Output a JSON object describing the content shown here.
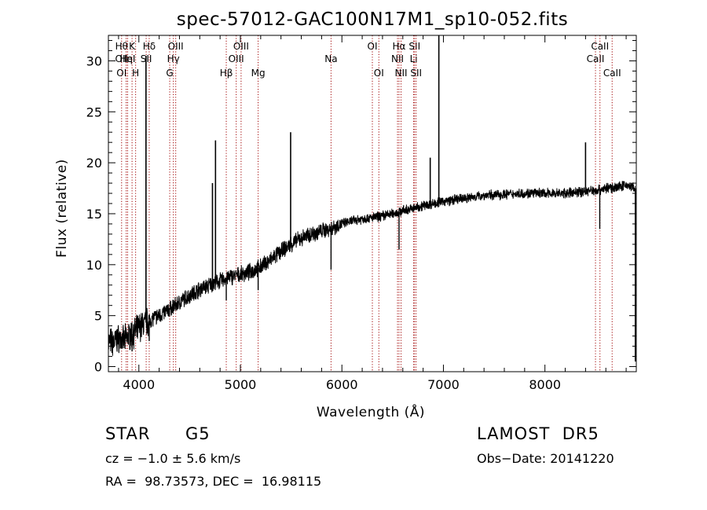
{
  "chart_data": {
    "type": "line",
    "title": "spec-57012-GAC100N17M1_sp10-052.fits",
    "xlabel": "Wavelength (Å)",
    "ylabel": "Flux (relative)",
    "xlim": [
      3700,
      8900
    ],
    "ylim": [
      -0.5,
      32.5
    ],
    "xticks": [
      4000,
      5000,
      6000,
      7000,
      8000
    ],
    "yticks": [
      0,
      5,
      10,
      15,
      20,
      25,
      30
    ],
    "grid": false,
    "line_color": "#000000",
    "marker_color": "#a00000",
    "series": [
      {
        "x": [
          3700,
          3750,
          3800,
          3850,
          3900,
          3950,
          4000,
          4050,
          4100,
          4150,
          4200,
          4300,
          4400,
          4500,
          4600,
          4700,
          4800,
          4900,
          5000,
          5100,
          5200,
          5300,
          5400,
          5500,
          5600,
          5700,
          5800,
          5900,
          6000,
          6100,
          6200,
          6300,
          6400,
          6500,
          6600,
          6700,
          6800,
          6900,
          7000,
          7200,
          7400,
          7600,
          7800,
          8000,
          8200,
          8400,
          8500,
          8600,
          8700,
          8800,
          8890
        ],
        "y": [
          2.5,
          2.3,
          2.8,
          2.5,
          3.0,
          3.3,
          3.8,
          4.2,
          4.5,
          4.8,
          5.0,
          5.6,
          6.3,
          7.0,
          7.6,
          8.0,
          8.4,
          8.8,
          9.0,
          9.3,
          9.8,
          10.5,
          11.3,
          12.0,
          12.6,
          13.0,
          13.3,
          13.6,
          14.0,
          14.3,
          14.5,
          14.6,
          14.8,
          15.0,
          15.3,
          15.5,
          15.8,
          16.0,
          16.2,
          16.5,
          16.8,
          16.9,
          17.0,
          17.0,
          17.0,
          17.2,
          17.3,
          17.5,
          17.6,
          17.8,
          17.5
        ],
        "emission_lines": [
          [
            4070,
            30.5
          ],
          [
            4755,
            22.2
          ],
          [
            4725,
            18.0
          ],
          [
            5495,
            23.0
          ],
          [
            6870,
            20.5
          ],
          [
            6955,
            32.5
          ],
          [
            8400,
            22.0
          ]
        ],
        "absorption_lines": [
          [
            3933,
            1.5
          ],
          [
            4102,
            2.5
          ],
          [
            4861,
            6.5
          ],
          [
            5175,
            7.5
          ],
          [
            5893,
            9.5
          ],
          [
            6563,
            11.5
          ],
          [
            8540,
            13.5
          ],
          [
            8890,
            0.5
          ]
        ]
      }
    ],
    "line_markers": [
      {
        "x": 3830,
        "labels": [
          "Hθ",
          "OII",
          "OI"
        ]
      },
      {
        "x": 3875,
        "labels": [
          "",
          "Hη",
          ""
        ]
      },
      {
        "x": 3889,
        "labels": [
          "",
          "HeI",
          ""
        ]
      },
      {
        "x": 3933,
        "labels": [
          "K",
          "",
          ""
        ]
      },
      {
        "x": 3968,
        "labels": [
          "",
          "",
          "H"
        ]
      },
      {
        "x": 4072,
        "labels": [
          "",
          "SII",
          ""
        ]
      },
      {
        "x": 4102,
        "labels": [
          "Hδ",
          "",
          ""
        ]
      },
      {
        "x": 4304,
        "labels": [
          "",
          "",
          "G"
        ]
      },
      {
        "x": 4340,
        "labels": [
          "",
          "Hγ",
          ""
        ]
      },
      {
        "x": 4363,
        "labels": [
          "OIII",
          "",
          ""
        ]
      },
      {
        "x": 4861,
        "labels": [
          "",
          "",
          "Hβ"
        ]
      },
      {
        "x": 4959,
        "labels": [
          "",
          "OIII",
          ""
        ]
      },
      {
        "x": 5007,
        "labels": [
          "OIII",
          "",
          ""
        ]
      },
      {
        "x": 5175,
        "labels": [
          "",
          "",
          "Mg"
        ]
      },
      {
        "x": 5893,
        "labels": [
          "",
          "Na",
          ""
        ]
      },
      {
        "x": 6300,
        "labels": [
          "OI",
          "",
          ""
        ]
      },
      {
        "x": 6364,
        "labels": [
          "",
          "",
          "OI"
        ]
      },
      {
        "x": 6548,
        "labels": [
          "",
          "NII",
          ""
        ]
      },
      {
        "x": 6563,
        "labels": [
          "Hα",
          "",
          ""
        ]
      },
      {
        "x": 6583,
        "labels": [
          "",
          "",
          "NII"
        ]
      },
      {
        "x": 6707,
        "labels": [
          "",
          "Li",
          ""
        ]
      },
      {
        "x": 6716,
        "labels": [
          "SII",
          "",
          ""
        ]
      },
      {
        "x": 6731,
        "labels": [
          "",
          "",
          "SII"
        ]
      },
      {
        "x": 8498,
        "labels": [
          "",
          "CaII",
          ""
        ]
      },
      {
        "x": 8542,
        "labels": [
          "CaII",
          "",
          ""
        ]
      },
      {
        "x": 8662,
        "labels": [
          "",
          "",
          "CaII"
        ]
      }
    ]
  },
  "info": {
    "class": "STAR",
    "subclass": "G5",
    "survey": "LAMOST  DR5",
    "cz": "cz = −1.0 ± 5.6 km/s",
    "obs_date": "Obs−Date: 20141220",
    "radec": "RA =  98.73573, DEC =  16.98115"
  }
}
